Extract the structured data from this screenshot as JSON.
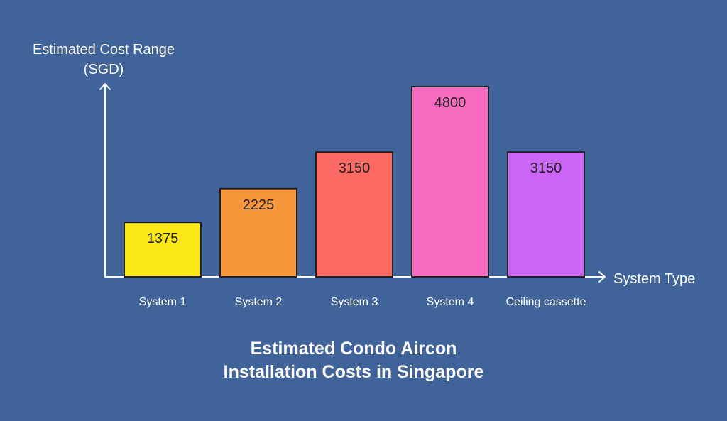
{
  "chart_data": {
    "type": "bar",
    "title": [
      "Estimated Condo Aircon",
      "Installation Costs in Singapore"
    ],
    "ylabel": [
      "Estimated Cost Range",
      "(SGD)"
    ],
    "xlabel": "System Type",
    "categories": [
      "System 1",
      "System 2",
      "System 3",
      "System 4",
      "Ceiling cassette"
    ],
    "values": [
      1375,
      2225,
      3150,
      4800,
      3150
    ],
    "colors": [
      "#fde817",
      "#f7963a",
      "#fd6a64",
      "#f66bbf",
      "#cb66f6"
    ],
    "ylim": [
      0,
      4800
    ],
    "grid": false,
    "legend": "none"
  },
  "colors": {
    "background": "#40639a",
    "axis": "#ffffff",
    "bar_outline": "#222222",
    "bar_label": "#222222"
  }
}
